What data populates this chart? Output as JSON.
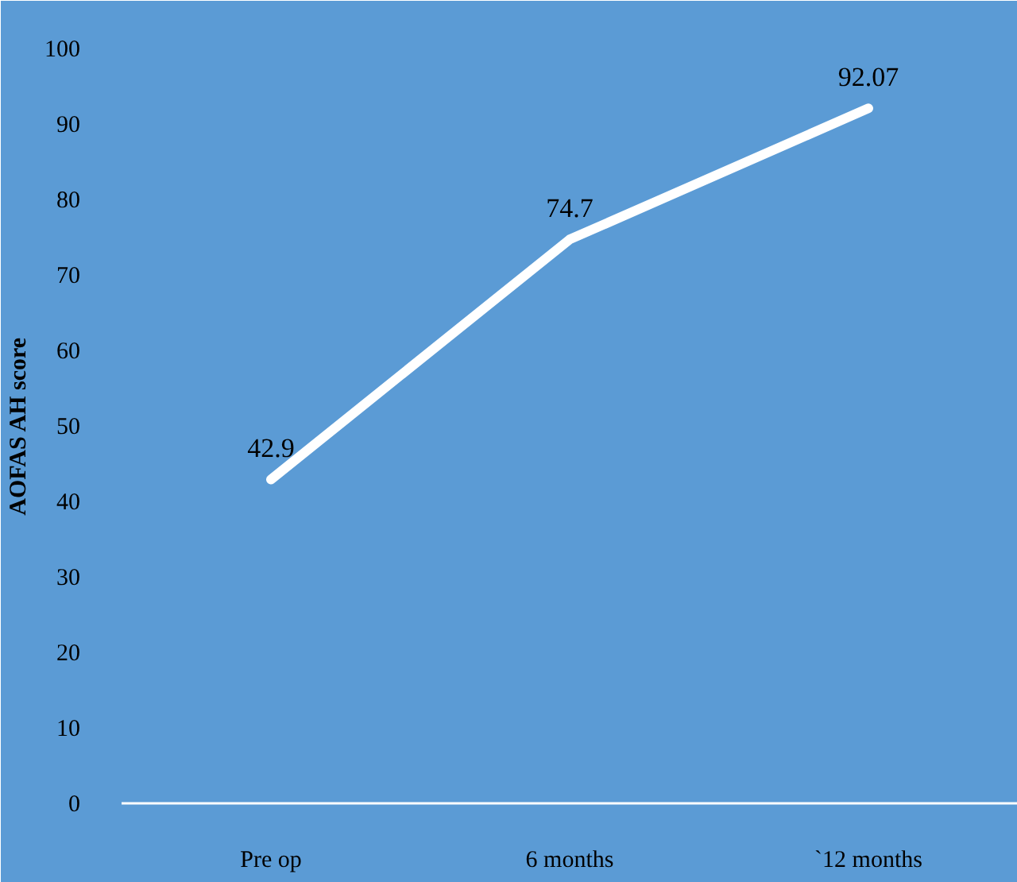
{
  "chart_data": {
    "type": "line",
    "ylabel": "AOFAS AH score",
    "categories": [
      "Pre op",
      "6 months",
      "`12 months"
    ],
    "series": [
      {
        "color": "#ffffff",
        "values": [
          42.9,
          74.7,
          92.07
        ]
      }
    ],
    "ylim": [
      0,
      100
    ],
    "yticks": [
      0,
      10,
      20,
      30,
      40,
      50,
      60,
      70,
      80,
      90,
      100
    ],
    "grid": false,
    "data_labels": true,
    "marker": "none",
    "line_style": "solid"
  }
}
